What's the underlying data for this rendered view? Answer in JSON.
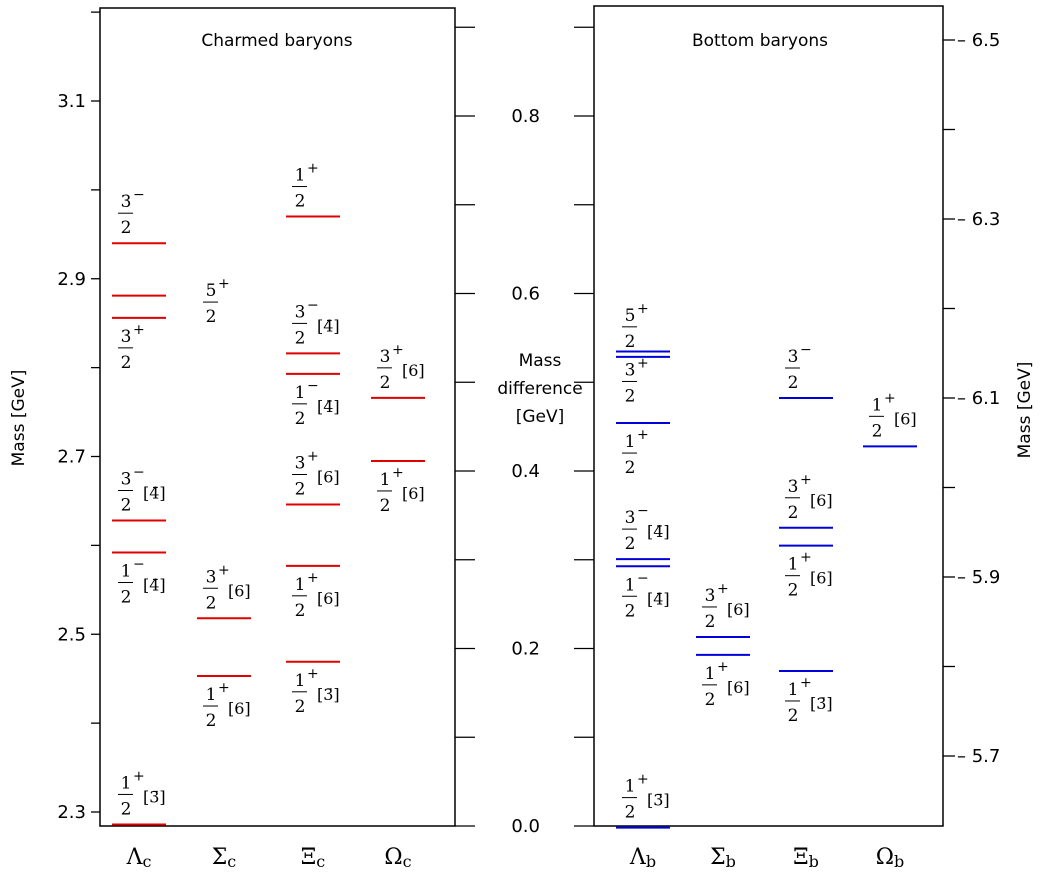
{
  "chart_data": [
    {
      "type": "level-diagram",
      "title": "Charmed baryons",
      "ylabel": "Mass [GeV]",
      "ylim": [
        2.28,
        3.2
      ],
      "yticks": [
        "2.3",
        "2.5",
        "2.7",
        "2.9",
        "3.1"
      ],
      "level_color": "#e00000",
      "categories": [
        {
          "base": "Λ",
          "sub": "c"
        },
        {
          "base": "Σ",
          "sub": "c"
        },
        {
          "base": "Ξ",
          "sub": "c"
        },
        {
          "base": "Ω",
          "sub": "c"
        }
      ],
      "levels": [
        {
          "cat": 0,
          "mass": 2.286,
          "num": "1",
          "sign": "+",
          "rep": "[3̄]",
          "label_pos": "above"
        },
        {
          "cat": 0,
          "mass": 2.592,
          "num": "1",
          "sign": "−",
          "rep": "[4̄]",
          "label_pos": "below"
        },
        {
          "cat": 0,
          "mass": 2.628,
          "num": "3",
          "sign": "−",
          "rep": "[4̄]",
          "label_pos": "above"
        },
        {
          "cat": 0,
          "mass": 2.856,
          "num": "3",
          "sign": "+",
          "rep": "",
          "label_pos": "below"
        },
        {
          "cat": 0,
          "mass": 2.881,
          "num": "",
          "sign": "",
          "rep": "",
          "label_pos": "none"
        },
        {
          "cat": 0,
          "mass": 2.94,
          "num": "3",
          "sign": "−",
          "rep": "",
          "label_pos": "above"
        },
        {
          "cat": 1,
          "mass": 2.453,
          "num": "1",
          "sign": "+",
          "rep": "[6]",
          "label_pos": "below"
        },
        {
          "cat": 1,
          "mass": 2.518,
          "num": "3",
          "sign": "+",
          "rep": "[6]",
          "label_pos": "above"
        },
        {
          "cat": 1,
          "mass": null,
          "num": "5",
          "sign": "+",
          "rep": "",
          "label_pos": "free",
          "label_mass": 2.885
        },
        {
          "cat": 2,
          "mass": 2.469,
          "num": "1",
          "sign": "+",
          "rep": "[3̄]",
          "label_pos": "below"
        },
        {
          "cat": 2,
          "mass": 2.577,
          "num": "1",
          "sign": "+",
          "rep": "[6]",
          "label_pos": "below"
        },
        {
          "cat": 2,
          "mass": 2.646,
          "num": "3",
          "sign": "+",
          "rep": "[6]",
          "label_pos": "above"
        },
        {
          "cat": 2,
          "mass": 2.793,
          "num": "1",
          "sign": "−",
          "rep": "[4̄]",
          "label_pos": "below"
        },
        {
          "cat": 2,
          "mass": 2.816,
          "num": "3",
          "sign": "−",
          "rep": "[4̄]",
          "label_pos": "above"
        },
        {
          "cat": 2,
          "mass": 2.97,
          "num": "1",
          "sign": "+",
          "rep": "",
          "label_pos": "above"
        },
        {
          "cat": 3,
          "mass": 2.695,
          "num": "1",
          "sign": "+",
          "rep": "[6]",
          "label_pos": "below"
        },
        {
          "cat": 3,
          "mass": 2.766,
          "num": "3",
          "sign": "+",
          "rep": "[6]",
          "label_pos": "above"
        }
      ]
    },
    {
      "type": "level-diagram",
      "title": "Bottom baryons",
      "ylabel": "Mass [GeV]",
      "ylabel_left": [
        "Mass",
        "difference",
        "[GeV]"
      ],
      "ylim_left": [
        0.0,
        0.93
      ],
      "yticks_left": [
        "0.0",
        "0.2",
        "0.4",
        "0.6",
        "0.8"
      ],
      "ylim_right": [
        5.6,
        6.53
      ],
      "yticks_right": [
        "5.7",
        "5.9",
        "6.1",
        "6.3",
        "6.5"
      ],
      "level_color": "#0000dd",
      "categories": [
        {
          "base": "Λ",
          "sub": "b"
        },
        {
          "base": "Σ",
          "sub": "b"
        },
        {
          "base": "Ξ",
          "sub": "b"
        },
        {
          "base": "Ω",
          "sub": "b"
        }
      ],
      "levels": [
        {
          "cat": 0,
          "mass": 5.62,
          "num": "1",
          "sign": "+",
          "rep": "[3̄]",
          "label_pos": "above"
        },
        {
          "cat": 0,
          "mass": 5.912,
          "num": "1",
          "sign": "−",
          "rep": "[4̄]",
          "label_pos": "below"
        },
        {
          "cat": 0,
          "mass": 5.92,
          "num": "3",
          "sign": "−",
          "rep": "[4̄]",
          "label_pos": "above"
        },
        {
          "cat": 0,
          "mass": 6.072,
          "num": "1",
          "sign": "+",
          "rep": "",
          "label_pos": "below"
        },
        {
          "cat": 0,
          "mass": 6.146,
          "num": "5",
          "sign": "+",
          "rep": "",
          "label_pos": "above"
        },
        {
          "cat": 0,
          "mass": 6.152,
          "num": "3",
          "sign": "+",
          "rep": "",
          "label_pos": "below"
        },
        {
          "cat": 1,
          "mass": 5.813,
          "num": "1",
          "sign": "+",
          "rep": "[6]",
          "label_pos": "below"
        },
        {
          "cat": 1,
          "mass": 5.833,
          "num": "3",
          "sign": "+",
          "rep": "[6]",
          "label_pos": "above"
        },
        {
          "cat": 2,
          "mass": 5.795,
          "num": "1",
          "sign": "+",
          "rep": "[3̄]",
          "label_pos": "below"
        },
        {
          "cat": 2,
          "mass": 5.935,
          "num": "1",
          "sign": "+",
          "rep": "[6]",
          "label_pos": "below"
        },
        {
          "cat": 2,
          "mass": 5.955,
          "num": "3",
          "sign": "+",
          "rep": "[6]",
          "label_pos": "above"
        },
        {
          "cat": 2,
          "mass": 6.1,
          "num": "3",
          "sign": "−",
          "rep": "",
          "label_pos": "above"
        },
        {
          "cat": 3,
          "mass": 6.046,
          "num": "1",
          "sign": "+",
          "rep": "[6]",
          "label_pos": "above"
        }
      ]
    }
  ]
}
